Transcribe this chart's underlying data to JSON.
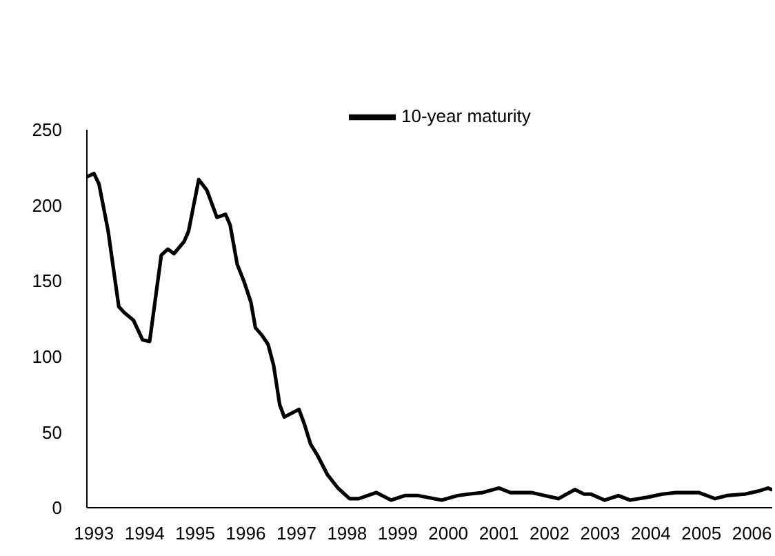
{
  "chart_data": {
    "type": "line",
    "legend": "top",
    "x": [
      1992.87,
      1993.0,
      1993.1,
      1993.28,
      1993.49,
      1993.6,
      1993.78,
      1993.96,
      1994.1,
      1994.33,
      1994.46,
      1994.58,
      1994.78,
      1994.87,
      1995.07,
      1995.23,
      1995.43,
      1995.6,
      1995.69,
      1995.83,
      1995.96,
      1996.1,
      1996.19,
      1996.32,
      1996.44,
      1996.55,
      1996.67,
      1996.76,
      1997.05,
      1997.16,
      1997.28,
      1997.41,
      1997.61,
      1997.82,
      1998.05,
      1998.23,
      1998.58,
      1998.87,
      1999.14,
      1999.41,
      1999.87,
      2000.18,
      2000.4,
      2000.68,
      2001.0,
      2001.23,
      2001.64,
      2001.91,
      2002.18,
      2002.5,
      2002.68,
      2002.82,
      2003.09,
      2003.36,
      2003.59,
      2003.95,
      2004.23,
      2004.5,
      2004.95,
      2005.27,
      2005.5,
      2005.86,
      2006.13,
      2006.32,
      2006.38
    ],
    "series": [
      {
        "name": "10-year maturity",
        "color": "#000000",
        "values": [
          219,
          221,
          214,
          183,
          133,
          129,
          124,
          111,
          110,
          167,
          171,
          168,
          176,
          183,
          217,
          210,
          192,
          194,
          187,
          161,
          150,
          136,
          119,
          114,
          108,
          94,
          68,
          60,
          65,
          55,
          42,
          35,
          22,
          13,
          6,
          6,
          10,
          5,
          8,
          8,
          5,
          8,
          9,
          10,
          13,
          10,
          10,
          8,
          6,
          12,
          9,
          9,
          5,
          8,
          5,
          7,
          9,
          10,
          10,
          6,
          8,
          9,
          11,
          13,
          12
        ]
      }
    ],
    "xlim": [
      1992.86,
      2006.4
    ],
    "xticks": [
      1993,
      1994,
      1995,
      1996,
      1997,
      1998,
      1999,
      2000,
      2001,
      2002,
      2003,
      2004,
      2005,
      2006
    ],
    "ylim": [
      0,
      250
    ],
    "yticks": [
      0,
      50,
      100,
      150,
      200,
      250
    ],
    "grid": false,
    "marker": "none",
    "line_style": "solid"
  }
}
